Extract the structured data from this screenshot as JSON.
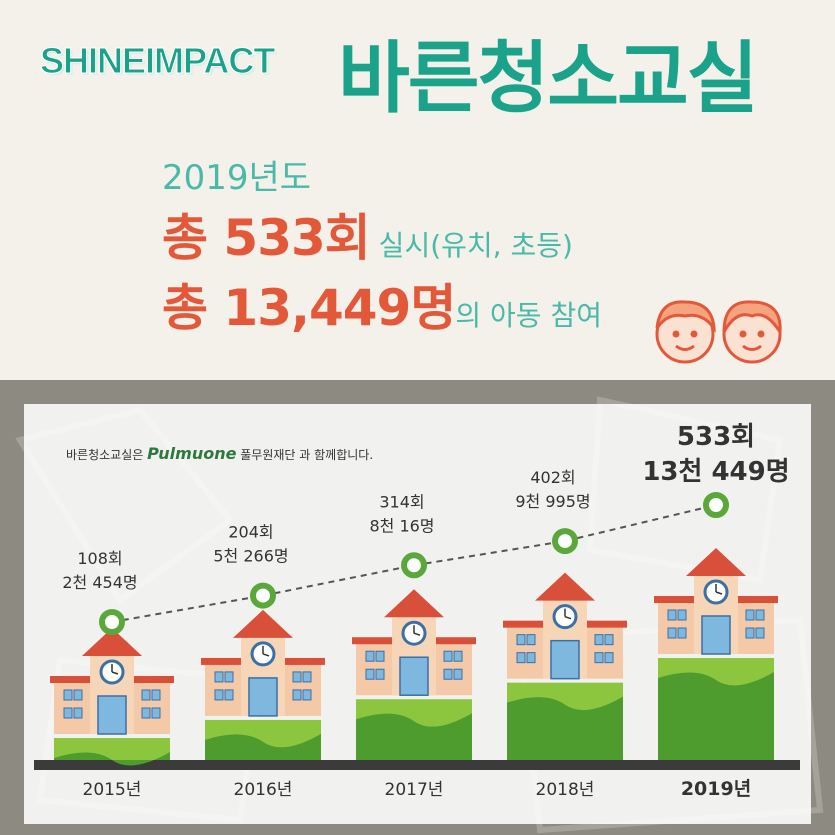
{
  "header": {
    "brand": "SHINEIMPACT",
    "program": "바른청소교실"
  },
  "summary": {
    "year": "2019년도",
    "count_prefix": "총 533회",
    "count_suffix": " 실시(유치, 초등)",
    "kids_prefix": "총 13,449명",
    "kids_suffix": "의 아동  참여"
  },
  "sponsor": {
    "before": "바른청소교실은",
    "logo": "Pulmuone",
    "after": "풀무원재단 과 함께합니다."
  },
  "colors": {
    "accent_green": "#1aa38a",
    "accent_orange": "#e4583a",
    "marker_green": "#5aa83a"
  },
  "chart_data": {
    "type": "line",
    "categories": [
      "2015년",
      "2016년",
      "2017년",
      "2018년",
      "2019년"
    ],
    "series": [
      {
        "values": [
          108,
          204,
          314,
          402,
          533
        ]
      }
    ],
    "participants": [
      2454,
      5266,
      8016,
      9995,
      13449
    ],
    "labels_sessions": [
      "108회",
      "204회",
      "314회",
      "402회",
      "533회"
    ],
    "labels_participants": [
      "2천 454명",
      "5천 266명",
      "8천 16명",
      "9천 995명",
      "13천 449명"
    ],
    "highlight_index": 4
  }
}
